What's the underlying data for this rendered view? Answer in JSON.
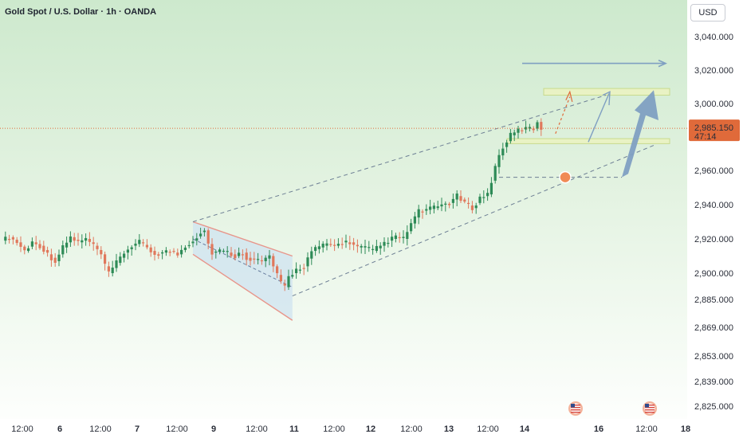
{
  "header": {
    "title": "Gold Spot / U.S. Dollar · 1h · OANDA",
    "currency": "USD"
  },
  "price_axis": {
    "ticks": [
      "3,040.000",
      "3,020.000",
      "3,000.000",
      "2,960.000",
      "2,940.000",
      "2,920.000",
      "2,900.000",
      "2,885.000",
      "2,869.000",
      "2,853.000",
      "2,839.000",
      "2,825.000"
    ],
    "current_price": "2,985.150",
    "countdown": "47:14"
  },
  "time_axis": {
    "labels": [
      {
        "text": "12:00",
        "bold": false
      },
      {
        "text": "6",
        "bold": true
      },
      {
        "text": "12:00",
        "bold": false
      },
      {
        "text": "7",
        "bold": true
      },
      {
        "text": "12:00",
        "bold": false
      },
      {
        "text": "9",
        "bold": true
      },
      {
        "text": "12:00",
        "bold": false
      },
      {
        "text": "11",
        "bold": true
      },
      {
        "text": "12:00",
        "bold": false
      },
      {
        "text": "12",
        "bold": true
      },
      {
        "text": "12:00",
        "bold": false
      },
      {
        "text": "13",
        "bold": true
      },
      {
        "text": "12:00",
        "bold": false
      },
      {
        "text": "14",
        "bold": true
      },
      {
        "text": "16",
        "bold": true
      },
      {
        "text": "12:00",
        "bold": false
      },
      {
        "text": "18",
        "bold": true
      }
    ]
  },
  "colors": {
    "up": "#2e8b57",
    "down": "#e0785c",
    "price_line": "#e06a3a",
    "projection": "#7f9fc2",
    "channel_fill": "#cfe3f0",
    "channel_border": "#e8958a",
    "zone": "#e9f2c4"
  },
  "icons": {
    "event_marker": "us-flag-icon"
  },
  "chart_data": {
    "type": "candlestick",
    "symbol": "Gold Spot / U.S. Dollar",
    "interval": "1h",
    "current_price": 2985.15,
    "close_path": [
      [
        0,
        2919
      ],
      [
        2,
        2921
      ],
      [
        4,
        2918
      ],
      [
        6,
        2913
      ],
      [
        8,
        2918
      ],
      [
        10,
        2916
      ],
      [
        12,
        2911
      ],
      [
        14,
        2907
      ],
      [
        16,
        2915
      ],
      [
        18,
        2921
      ],
      [
        20,
        2918
      ],
      [
        22,
        2920
      ],
      [
        24,
        2916
      ],
      [
        26,
        2911
      ],
      [
        27,
        2904
      ],
      [
        28,
        2900
      ],
      [
        30,
        2906
      ],
      [
        32,
        2912
      ],
      [
        34,
        2916
      ],
      [
        36,
        2918
      ],
      [
        38,
        2915
      ],
      [
        40,
        2911
      ],
      [
        42,
        2912
      ],
      [
        44,
        2913
      ],
      [
        46,
        2911
      ],
      [
        48,
        2916
      ],
      [
        50,
        2919
      ],
      [
        52,
        2924
      ],
      [
        53,
        2925
      ],
      [
        54,
        2917
      ],
      [
        55,
        2912
      ],
      [
        57,
        2913
      ],
      [
        59,
        2912
      ],
      [
        61,
        2910
      ],
      [
        63,
        2912
      ],
      [
        64,
        2909
      ],
      [
        66,
        2908
      ],
      [
        68,
        2907
      ],
      [
        70,
        2910
      ],
      [
        71,
        2904
      ],
      [
        72,
        2899
      ],
      [
        73,
        2894
      ],
      [
        74,
        2892
      ],
      [
        75,
        2898
      ],
      [
        77,
        2902
      ],
      [
        79,
        2904
      ],
      [
        81,
        2913
      ],
      [
        83,
        2915
      ],
      [
        85,
        2917
      ],
      [
        87,
        2916
      ],
      [
        89,
        2918
      ],
      [
        91,
        2918
      ],
      [
        93,
        2915
      ],
      [
        95,
        2915
      ],
      [
        97,
        2913
      ],
      [
        99,
        2916
      ],
      [
        101,
        2919
      ],
      [
        103,
        2921
      ],
      [
        105,
        2920
      ],
      [
        107,
        2929
      ],
      [
        109,
        2936
      ],
      [
        111,
        2937
      ],
      [
        113,
        2938
      ],
      [
        115,
        2940
      ],
      [
        117,
        2941
      ],
      [
        119,
        2945
      ],
      [
        121,
        2941
      ],
      [
        123,
        2938
      ],
      [
        125,
        2944
      ],
      [
        127,
        2946
      ],
      [
        129,
        2962
      ],
      [
        130,
        2969
      ],
      [
        131,
        2974
      ],
      [
        133,
        2981
      ],
      [
        135,
        2984
      ],
      [
        137,
        2985
      ],
      [
        139,
        2985
      ],
      [
        140,
        2989
      ],
      [
        141,
        2985.15
      ]
    ],
    "channel": {
      "from_bar": 50,
      "to_bar": 76,
      "top": [
        2930,
        2910
      ],
      "bottom": [
        2911,
        2873
      ]
    },
    "zones": [
      {
        "name": "target",
        "low": 3005,
        "high": 3009
      },
      {
        "name": "support",
        "low": 2976,
        "high": 2979
      }
    ],
    "marker_level": 2956,
    "target_level": 3024
  }
}
